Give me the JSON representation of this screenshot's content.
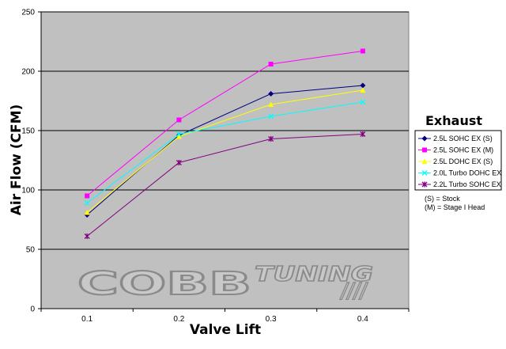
{
  "chart_data": {
    "type": "line",
    "x": [
      0.1,
      0.2,
      0.3,
      0.4
    ],
    "x_tick_labels": [
      "0.1",
      "0.2",
      "0.3",
      "0.4"
    ],
    "y_tick_labels": [
      "0",
      "50",
      "100",
      "150",
      "200",
      "250"
    ],
    "ylim": [
      0,
      250
    ],
    "xlabel": "Valve Lift",
    "ylabel": "Air Flow (CFM)",
    "grid": "horizontal",
    "legend_title": "Exhaust",
    "legend_placement": "right",
    "series": [
      {
        "name": "2.5L SOHC EX (S)",
        "color": "#000080",
        "marker": "diamond",
        "values": [
          79,
          146,
          181,
          188
        ]
      },
      {
        "name": "2.5L SOHC EX (M)",
        "color": "#ff00ff",
        "marker": "square",
        "values": [
          95,
          159,
          206,
          217
        ]
      },
      {
        "name": "2.5L DOHC EX (S)",
        "color": "#ffff00",
        "marker": "triangle",
        "values": [
          81,
          145,
          172,
          184
        ]
      },
      {
        "name": "2.0L Turbo DOHC EX",
        "color": "#00ffff",
        "marker": "x",
        "values": [
          89,
          147,
          162,
          174
        ]
      },
      {
        "name": "2.2L Turbo SOHC EX",
        "color": "#800080",
        "marker": "star",
        "values": [
          61,
          123,
          143,
          147
        ]
      }
    ],
    "notes": [
      "(S) = Stock",
      "(M) = Stage I Head"
    ]
  },
  "watermark": {
    "logo_main": "COBB",
    "logo_sub": "TUNING",
    "logo_stripes": "////"
  },
  "colors": {
    "plot_background": "#c0c0c0",
    "gridline": "#000000"
  }
}
